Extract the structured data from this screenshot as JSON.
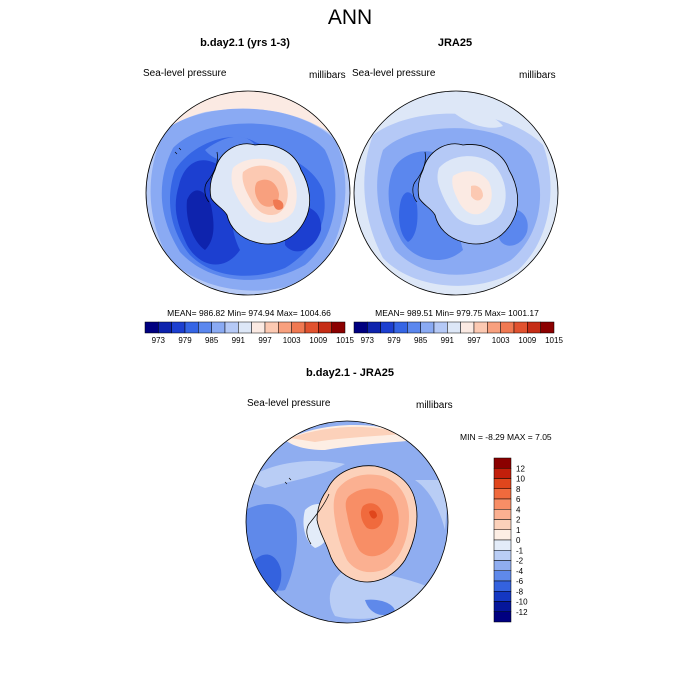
{
  "figure": {
    "title": "ANN"
  },
  "panels": [
    {
      "title": "b.day2.1 (yrs 1-3)",
      "left_label": "Sea-level pressure",
      "right_label": "millibars",
      "stats": "MEAN= 986.82  Min= 974.94  Max= 1004.66"
    },
    {
      "title": "JRA25",
      "left_label": "Sea-level pressure",
      "right_label": "millibars",
      "stats": "MEAN= 989.51  Min= 979.75  Max= 1001.17"
    }
  ],
  "diff_panel": {
    "title": "b.day2.1 - JRA25",
    "left_label": "Sea-level pressure",
    "right_label": "millibars",
    "stats": "MIN =  -8.29 MAX =   7.05"
  },
  "horizontal_colorbar": {
    "labels": [
      "973",
      "979",
      "985",
      "991",
      "997",
      "1003",
      "1009",
      "1015"
    ],
    "colors": [
      "#000080",
      "#0e23ad",
      "#1c3fd0",
      "#3565e5",
      "#5b87ee",
      "#8aaaf3",
      "#b5c9f6",
      "#dde7f7",
      "#fbeae3",
      "#fcc9b2",
      "#f8a07e",
      "#f07952",
      "#e1522f",
      "#c62d16",
      "#8b0000"
    ]
  },
  "vertical_colorbar": {
    "labels": [
      "12",
      "10",
      "8",
      "6",
      "4",
      "2",
      "1",
      "0",
      "-1",
      "-2",
      "-4",
      "-6",
      "-8",
      "-10",
      "-12"
    ],
    "colors": [
      "#8b0000",
      "#c21f0b",
      "#e0461c",
      "#f06a3d",
      "#f88e66",
      "#fbb091",
      "#fcd1ba",
      "#fdeee4",
      "#e3ecf9",
      "#b9cdf5",
      "#8fadf0",
      "#5f89ea",
      "#3462de",
      "#1437c2",
      "#05169a",
      "#000080"
    ]
  }
}
